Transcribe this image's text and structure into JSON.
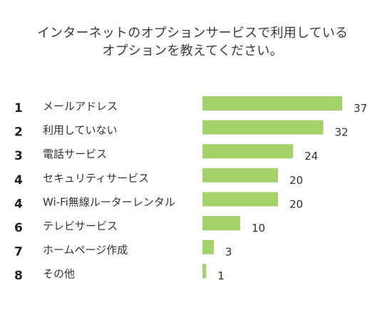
{
  "chart_data": {
    "type": "bar",
    "orientation": "horizontal",
    "title_lines": [
      "インターネットのオプションサービスで利用している",
      "オプションを教えてください。"
    ],
    "ranks": [
      "1",
      "2",
      "3",
      "4",
      "4",
      "6",
      "7",
      "8"
    ],
    "categories": [
      "メールアドレス",
      "利用していない",
      "電話サービス",
      "セキュリティサービス",
      "Wi-Fi無線ルーターレンタル",
      "テレビサービス",
      "ホームページ作成",
      "その他"
    ],
    "values": [
      37,
      32,
      24,
      20,
      20,
      10,
      3,
      1
    ],
    "xlim": [
      0,
      37
    ],
    "bar_color": "#a5d16b",
    "grid": false,
    "legend": "none",
    "axes_visible": false
  }
}
